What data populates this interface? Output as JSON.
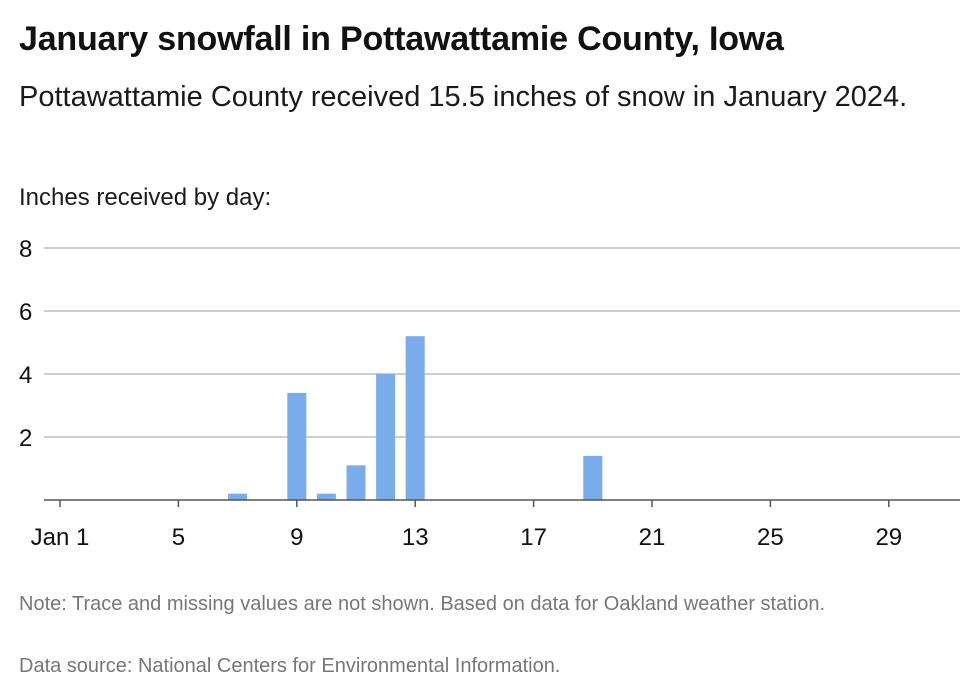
{
  "chart_data": {
    "type": "bar",
    "title": "January snowfall in Pottawattamie County, Iowa",
    "subtitle": "Pottawattamie County received 15.5 inches of snow in January 2024.",
    "ylabel": "Inches received by day:",
    "xlabel": "",
    "x": [
      7,
      9,
      10,
      11,
      12,
      13,
      19
    ],
    "values": [
      0.2,
      3.4,
      0.2,
      1.1,
      4.0,
      5.2,
      1.4
    ],
    "xlim": [
      1,
      31
    ],
    "ylim": [
      0,
      8
    ],
    "yticks": [
      2,
      4,
      6,
      8
    ],
    "xticks": [
      {
        "day": 1,
        "label": "Jan 1"
      },
      {
        "day": 5,
        "label": "5"
      },
      {
        "day": 9,
        "label": "9"
      },
      {
        "day": 13,
        "label": "13"
      },
      {
        "day": 17,
        "label": "17"
      },
      {
        "day": 21,
        "label": "21"
      },
      {
        "day": 25,
        "label": "25"
      },
      {
        "day": 29,
        "label": "29"
      }
    ],
    "grid": true,
    "bar_color": "#7aabea",
    "grid_color": "#bdbdbd",
    "axis_color": "#555555"
  },
  "note": "Note: Trace and missing values are not shown. Based on data for Oakland weather station.",
  "source": "Data source: National Centers for Environmental Information."
}
